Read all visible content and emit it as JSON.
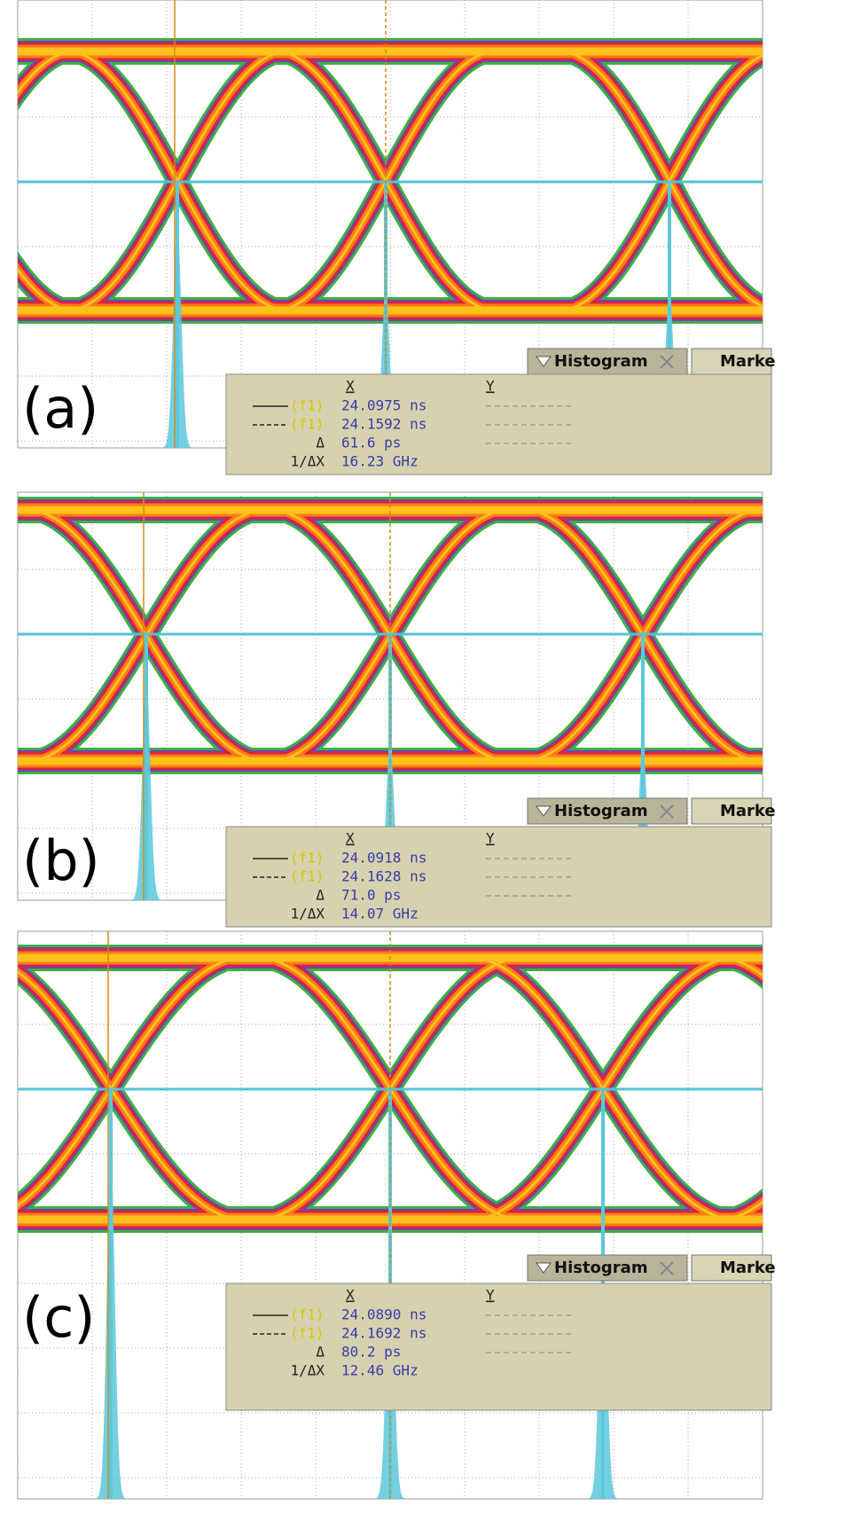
{
  "panels": [
    {
      "label": "(a)",
      "tabs": [
        "Histogram",
        "Marke"
      ],
      "markers": {
        "x_header": "X",
        "y_header": "Y",
        "rows": [
          {
            "source": "(f1)",
            "x": "24.0975 ns"
          },
          {
            "source": "(f1)",
            "x": "24.1592 ns"
          },
          {
            "label": "Δ",
            "x": "61.6 ps"
          },
          {
            "label": "1/ΔX",
            "x": "16.23 GHz"
          }
        ]
      }
    },
    {
      "label": "(b)",
      "tabs": [
        "Histogram",
        "Marke"
      ],
      "markers": {
        "x_header": "X",
        "y_header": "Y",
        "rows": [
          {
            "source": "(f1)",
            "x": "24.0918 ns"
          },
          {
            "source": "(f1)",
            "x": "24.1628 ns"
          },
          {
            "label": "Δ",
            "x": "71.0 ps"
          },
          {
            "label": "1/ΔX",
            "x": "14.07 GHz"
          }
        ]
      }
    },
    {
      "label": "(c)",
      "tabs": [
        "Histogram",
        "Marke"
      ],
      "markers": {
        "x_header": "X",
        "y_header": "Y",
        "rows": [
          {
            "source": "(f1)",
            "x": "24.0890 ns"
          },
          {
            "source": "(f1)",
            "x": "24.1692 ns"
          },
          {
            "label": "Δ",
            "x": "80.2 ps"
          },
          {
            "label": "1/ΔX",
            "x": "12.46 GHz"
          }
        ]
      }
    }
  ]
}
